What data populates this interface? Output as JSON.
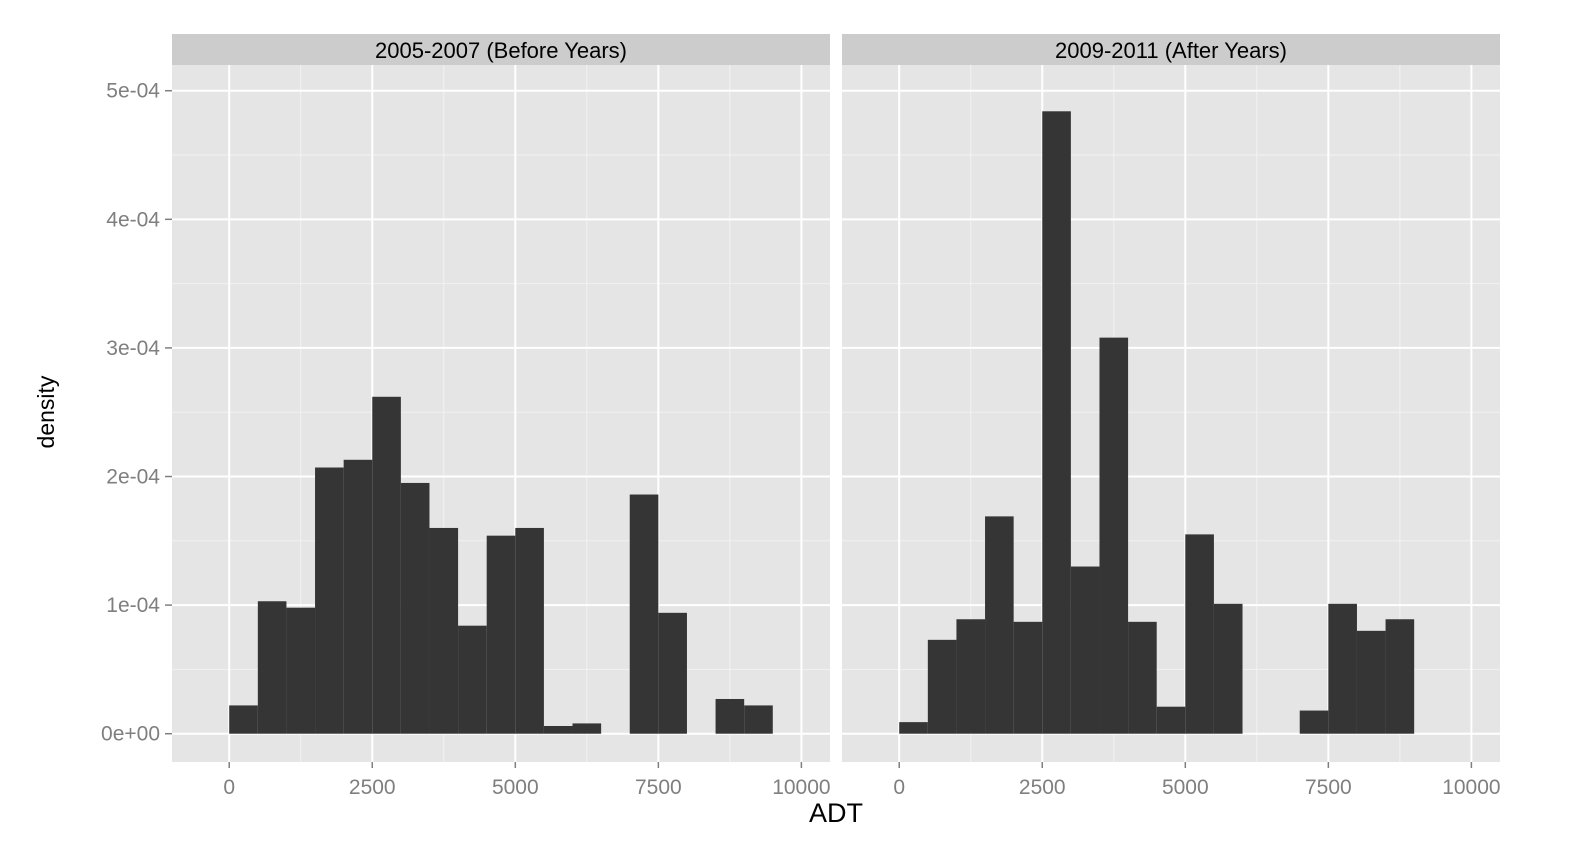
{
  "chart_data": {
    "type": "bar",
    "subtype": "faceted-histogram",
    "xlabel": "ADT",
    "ylabel": "density",
    "xlim": [
      -1000,
      10500
    ],
    "ylim": [
      -2.2e-05,
      0.00052
    ],
    "x_ticks": [
      0,
      2500,
      5000,
      7500,
      10000
    ],
    "x_tick_labels": [
      "0",
      "2500",
      "5000",
      "7500",
      "10000"
    ],
    "y_ticks": [
      0,
      0.0001,
      0.0002,
      0.0003,
      0.0004,
      0.0005
    ],
    "y_tick_labels": [
      "0e+00",
      "1e-04",
      "2e-04",
      "3e-04",
      "4e-04",
      "5e-04"
    ],
    "bin_width": 500,
    "grid": true,
    "colors": {
      "panel_background": "#e5e5e5",
      "strip_background": "#cccccc",
      "gridline": "#ffffff",
      "bar_fill": "#353535",
      "tick_label": "#7f7f7f",
      "text": "#000000"
    },
    "facets": [
      {
        "label": "2005-2007 (Before Years)",
        "bins": [
          {
            "start": 0,
            "end": 500,
            "density": 2.2e-05
          },
          {
            "start": 500,
            "end": 1000,
            "density": 0.000103
          },
          {
            "start": 1000,
            "end": 1500,
            "density": 9.8e-05
          },
          {
            "start": 1500,
            "end": 2000,
            "density": 0.000207
          },
          {
            "start": 2000,
            "end": 2500,
            "density": 0.000213
          },
          {
            "start": 2500,
            "end": 3000,
            "density": 0.000262
          },
          {
            "start": 3000,
            "end": 3500,
            "density": 0.000195
          },
          {
            "start": 3500,
            "end": 4000,
            "density": 0.00016
          },
          {
            "start": 4000,
            "end": 4500,
            "density": 8.4e-05
          },
          {
            "start": 4500,
            "end": 5000,
            "density": 0.000154
          },
          {
            "start": 5000,
            "end": 5500,
            "density": 0.00016
          },
          {
            "start": 5500,
            "end": 6000,
            "density": 6e-06
          },
          {
            "start": 6000,
            "end": 6500,
            "density": 8e-06
          },
          {
            "start": 6500,
            "end": 7000,
            "density": 0
          },
          {
            "start": 7000,
            "end": 7500,
            "density": 0.000186
          },
          {
            "start": 7500,
            "end": 8000,
            "density": 9.4e-05
          },
          {
            "start": 8000,
            "end": 8500,
            "density": 0
          },
          {
            "start": 8500,
            "end": 9000,
            "density": 2.7e-05
          },
          {
            "start": 9000,
            "end": 9500,
            "density": 2.2e-05
          }
        ]
      },
      {
        "label": "2009-2011 (After Years)",
        "bins": [
          {
            "start": 0,
            "end": 500,
            "density": 9e-06
          },
          {
            "start": 500,
            "end": 1000,
            "density": 7.3e-05
          },
          {
            "start": 1000,
            "end": 1500,
            "density": 8.9e-05
          },
          {
            "start": 1500,
            "end": 2000,
            "density": 0.000169
          },
          {
            "start": 2000,
            "end": 2500,
            "density": 8.7e-05
          },
          {
            "start": 2500,
            "end": 3000,
            "density": 0.000484
          },
          {
            "start": 3000,
            "end": 3500,
            "density": 0.00013
          },
          {
            "start": 3500,
            "end": 4000,
            "density": 0.000308
          },
          {
            "start": 4000,
            "end": 4500,
            "density": 8.7e-05
          },
          {
            "start": 4500,
            "end": 5000,
            "density": 2.1e-05
          },
          {
            "start": 5000,
            "end": 5500,
            "density": 0.000155
          },
          {
            "start": 5500,
            "end": 6000,
            "density": 0.000101
          },
          {
            "start": 6000,
            "end": 6500,
            "density": 0
          },
          {
            "start": 6500,
            "end": 7000,
            "density": 0
          },
          {
            "start": 7000,
            "end": 7500,
            "density": 1.8e-05
          },
          {
            "start": 7500,
            "end": 8000,
            "density": 0.000101
          },
          {
            "start": 8000,
            "end": 8500,
            "density": 8e-05
          },
          {
            "start": 8500,
            "end": 9000,
            "density": 8.9e-05
          }
        ]
      }
    ]
  }
}
